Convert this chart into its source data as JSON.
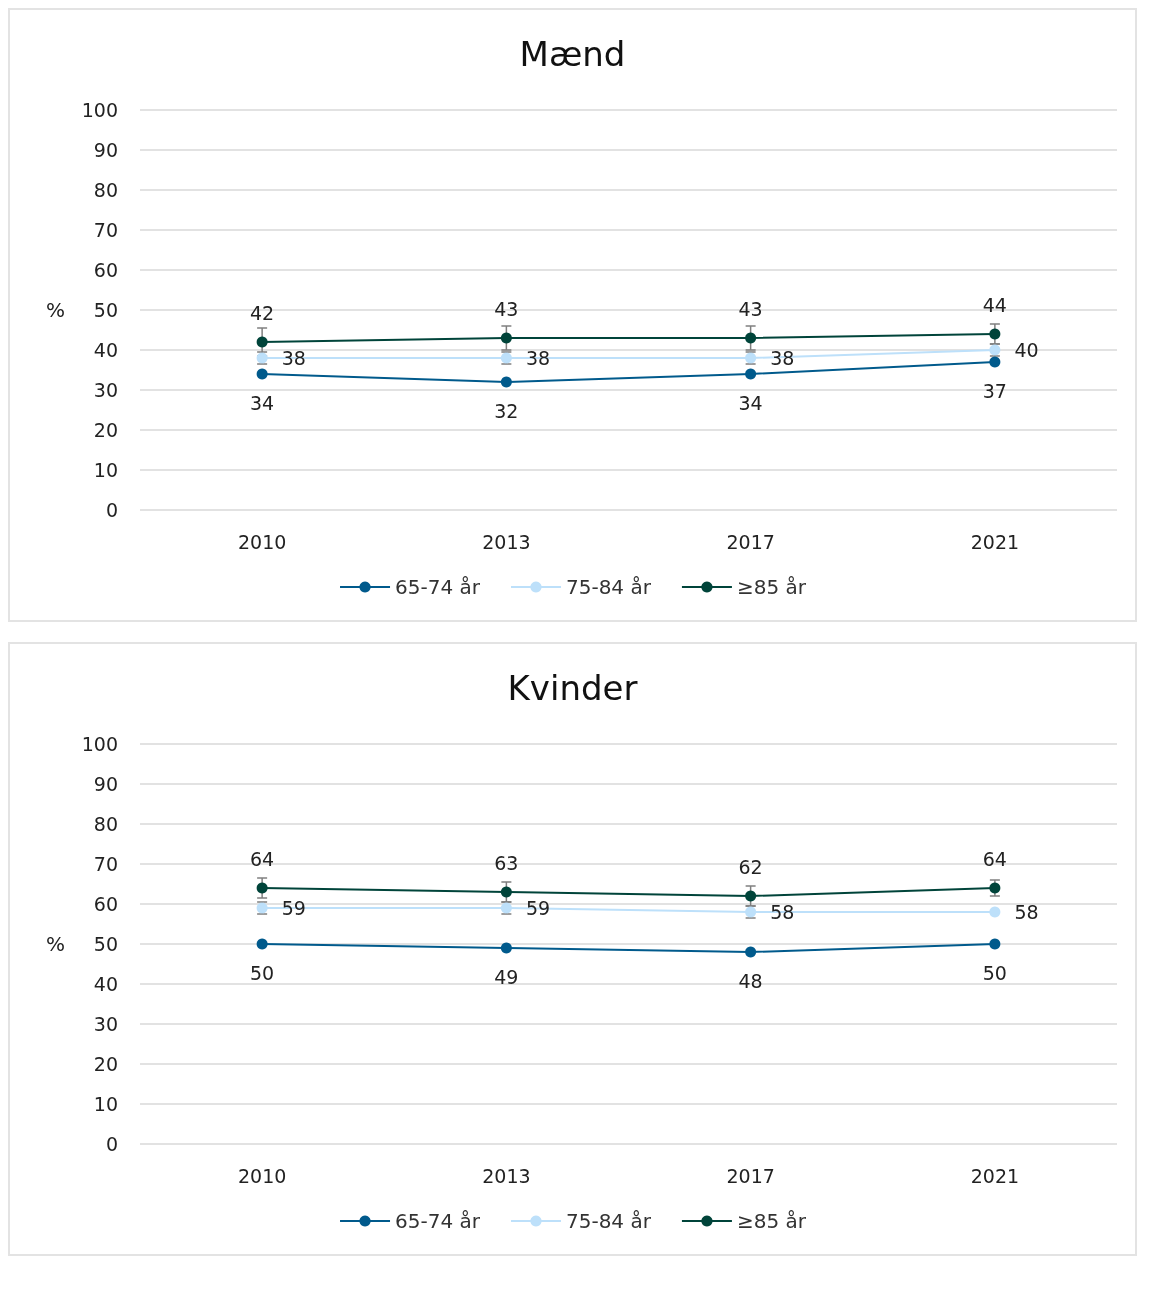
{
  "chart_data": [
    {
      "type": "line",
      "title": "Mænd",
      "ylabel": "%",
      "categories": [
        "2010",
        "2013",
        "2017",
        "2021"
      ],
      "ylim": [
        0,
        100
      ],
      "yticks": [
        0,
        10,
        20,
        30,
        40,
        50,
        60,
        70,
        80,
        90,
        100
      ],
      "grid": "y",
      "legend": "bottom",
      "marker": "circle",
      "data_labels": true,
      "series": [
        {
          "name": "65-74 år",
          "color": "#005a8c",
          "values": [
            34,
            32,
            34,
            37
          ]
        },
        {
          "name": "75-84 år",
          "color": "#bde0fa",
          "values": [
            38,
            38,
            38,
            40
          ],
          "errors": [
            1.5,
            1.5,
            1.5,
            1.5
          ]
        },
        {
          "name": "≥85 år",
          "color": "#00443a",
          "values": [
            42,
            43,
            43,
            44
          ],
          "errors": [
            3.5,
            3,
            3,
            2.5
          ]
        }
      ]
    },
    {
      "type": "line",
      "title": "Kvinder",
      "ylabel": "%",
      "categories": [
        "2010",
        "2013",
        "2017",
        "2021"
      ],
      "ylim": [
        0,
        100
      ],
      "yticks": [
        0,
        10,
        20,
        30,
        40,
        50,
        60,
        70,
        80,
        90,
        100
      ],
      "grid": "y",
      "legend": "bottom",
      "marker": "circle",
      "data_labels": true,
      "series": [
        {
          "name": "65-74 år",
          "color": "#005a8c",
          "values": [
            50,
            49,
            48,
            50
          ]
        },
        {
          "name": "75-84 år",
          "color": "#bde0fa",
          "values": [
            59,
            59,
            58,
            58
          ],
          "errors": [
            1.5,
            1.5,
            1.5,
            null
          ]
        },
        {
          "name": "≥85 år",
          "color": "#00443a",
          "values": [
            64,
            63,
            62,
            64
          ],
          "errors": [
            2.5,
            2.5,
            2.5,
            2
          ]
        }
      ]
    }
  ]
}
